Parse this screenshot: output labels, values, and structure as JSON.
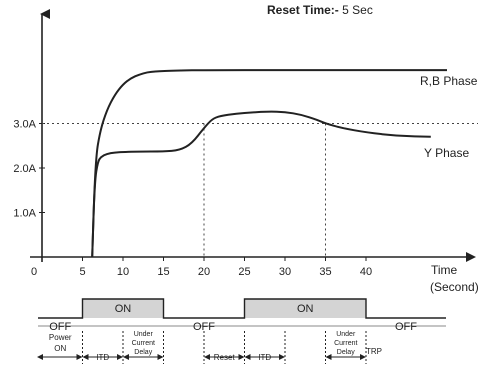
{
  "header": {
    "reset_prefix": "Reset Time:-",
    "reset_value": "5 Sec"
  },
  "chart_data": {
    "type": "line",
    "x_unit_label": [
      "Time",
      "(Second)"
    ],
    "xlim": [
      0,
      50
    ],
    "ylim": [
      0,
      4.5
    ],
    "x_ticks": [
      0,
      5,
      10,
      15,
      20,
      25,
      30,
      35,
      40
    ],
    "y_ticks": [
      {
        "value": 1.0,
        "label": "1.0A"
      },
      {
        "value": 2.0,
        "label": "2.0A"
      },
      {
        "value": 3.0,
        "label": "3.0A"
      }
    ],
    "threshold": {
      "value": 3.0,
      "style": "dotted"
    },
    "series": [
      {
        "name": "R,B Phase",
        "x": [
          6.2,
          6.6,
          7.2,
          8,
          9,
          10,
          11,
          12,
          13,
          14,
          15,
          17,
          20,
          30,
          40,
          50
        ],
        "y": [
          0,
          2.2,
          2.85,
          3.3,
          3.65,
          3.88,
          4.02,
          4.1,
          4.15,
          4.17,
          4.18,
          4.19,
          4.2,
          4.2,
          4.2,
          4.2
        ]
      },
      {
        "name": "Y Phase",
        "x": [
          6.2,
          6.5,
          6.9,
          7.3,
          8,
          9,
          10,
          12,
          15,
          17,
          18.5,
          20,
          21,
          22,
          24,
          26,
          28,
          30,
          32,
          34,
          35,
          37,
          40,
          44,
          48
        ],
        "y": [
          0,
          1.7,
          2.15,
          2.25,
          2.32,
          2.35,
          2.36,
          2.37,
          2.37,
          2.4,
          2.55,
          2.9,
          3.1,
          3.17,
          3.22,
          3.25,
          3.27,
          3.26,
          3.2,
          3.08,
          3.0,
          2.9,
          2.8,
          2.72,
          2.7
        ]
      }
    ],
    "vertical_markers": [
      20,
      35
    ],
    "timing": {
      "relay_states": [
        {
          "from": 0,
          "to": 5,
          "label": "OFF",
          "level": "low"
        },
        {
          "from": 5,
          "to": 15,
          "label": "ON",
          "level": "high"
        },
        {
          "from": 15,
          "to": 25,
          "label": "OFF",
          "level": "low"
        },
        {
          "from": 25,
          "to": 40,
          "label": "ON",
          "level": "high"
        },
        {
          "from": 40,
          "to": 50,
          "label": "OFF",
          "level": "low"
        }
      ],
      "phases": [
        {
          "from": 0,
          "to": 5,
          "lines": [
            "Power",
            "ON"
          ],
          "dash_start": false,
          "dash_end": true
        },
        {
          "from": 5,
          "to": 10,
          "lines": [
            "ITD"
          ],
          "dash_start": true,
          "dash_end": true
        },
        {
          "from": 10,
          "to": 15,
          "lines": [
            "Under",
            "Current",
            "Delay"
          ],
          "dash_start": true,
          "dash_end": true
        },
        {
          "from": 20,
          "to": 25,
          "lines": [
            "Reset"
          ],
          "dash_start": true,
          "dash_end": true
        },
        {
          "from": 25,
          "to": 30,
          "lines": [
            "ITD"
          ],
          "dash_start": true,
          "dash_end": true
        },
        {
          "from": 35,
          "to": 40,
          "lines": [
            "Under",
            "Current",
            "Delay"
          ],
          "dash_start": true,
          "dash_end": true
        },
        {
          "from": 40,
          "to": 44,
          "lines": [
            "TRP"
          ],
          "dash_start": false,
          "dash_end": false,
          "no_arrow": true
        }
      ]
    }
  },
  "colors": {
    "line": "#222222",
    "dotted": "#444444",
    "on_fill": "#d4d4d4",
    "baseline": "#888888"
  }
}
